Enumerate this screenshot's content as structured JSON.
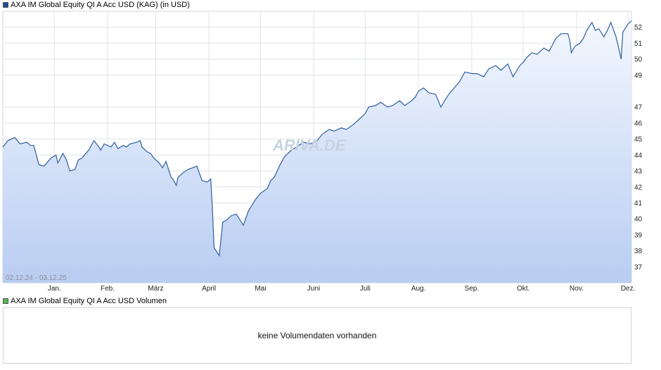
{
  "legend": {
    "price_label": "AXA IM Global Equity QI A Acc USD (KAG) (in USD)",
    "volume_label": "AXA IM Global Equity QI A Acc USD Volumen"
  },
  "colors": {
    "line": "#2e5f9e",
    "fill_top": "#f3f7fe",
    "fill_bottom": "#b9cdf2",
    "grid": "#dfe3ea",
    "price_swatch": "#1f4e9a",
    "volume_swatch": "#55b655"
  },
  "range_label": "02.12.24 - 03.12.25",
  "watermark": "ARIVA.DE",
  "volume_panel": {
    "message": "keine Volumendaten vorhanden"
  },
  "chart_data": {
    "type": "area",
    "title": "AXA IM Global Equity QI A Acc USD (KAG) (in USD)",
    "xlabel": "",
    "ylabel": "",
    "x_range": [
      "2024-12-02",
      "2025-12-03"
    ],
    "ylim": [
      36.0,
      53.0
    ],
    "y_ticks": [
      37,
      38,
      39,
      40,
      41,
      42,
      43,
      44,
      45,
      46,
      47,
      49,
      50,
      51,
      52
    ],
    "month_labels": [
      {
        "label": "Jan.",
        "date": "2025-01-01"
      },
      {
        "label": "Feb.",
        "date": "2025-02-01"
      },
      {
        "label": "März",
        "date": "2025-03-01"
      },
      {
        "label": "April",
        "date": "2025-04-01"
      },
      {
        "label": "Mai",
        "date": "2025-05-01"
      },
      {
        "label": "Juni",
        "date": "2025-06-01"
      },
      {
        "label": "Juli",
        "date": "2025-07-01"
      },
      {
        "label": "Aug.",
        "date": "2025-08-01"
      },
      {
        "label": "Sep.",
        "date": "2025-09-01"
      },
      {
        "label": "Okt.",
        "date": "2025-10-01"
      },
      {
        "label": "Nov.",
        "date": "2025-11-01"
      },
      {
        "label": "Dez.",
        "date": "2025-12-01"
      }
    ],
    "grid": true,
    "legend": "top-left",
    "series": [
      {
        "values": [
          [
            "2024-12-02",
            44.5
          ],
          [
            "2024-12-05",
            44.9
          ],
          [
            "2024-12-09",
            45.1
          ],
          [
            "2024-12-12",
            44.7
          ],
          [
            "2024-12-16",
            44.8
          ],
          [
            "2024-12-18",
            44.6
          ],
          [
            "2024-12-20",
            44.6
          ],
          [
            "2024-12-23",
            43.4
          ],
          [
            "2024-12-26",
            43.3
          ],
          [
            "2024-12-30",
            43.8
          ],
          [
            "2025-01-02",
            44.0
          ],
          [
            "2025-01-03",
            43.5
          ],
          [
            "2025-01-06",
            44.1
          ],
          [
            "2025-01-08",
            43.7
          ],
          [
            "2025-01-10",
            43.0
          ],
          [
            "2025-01-13",
            43.1
          ],
          [
            "2025-01-15",
            43.7
          ],
          [
            "2025-01-17",
            43.8
          ],
          [
            "2025-01-21",
            44.3
          ],
          [
            "2025-01-24",
            44.9
          ],
          [
            "2025-01-27",
            44.5
          ],
          [
            "2025-01-28",
            44.3
          ],
          [
            "2025-01-30",
            44.7
          ],
          [
            "2025-02-03",
            44.5
          ],
          [
            "2025-02-05",
            44.8
          ],
          [
            "2025-02-07",
            44.4
          ],
          [
            "2025-02-10",
            44.6
          ],
          [
            "2025-02-12",
            44.5
          ],
          [
            "2025-02-14",
            44.7
          ],
          [
            "2025-02-18",
            44.8
          ],
          [
            "2025-02-20",
            44.9
          ],
          [
            "2025-02-21",
            44.5
          ],
          [
            "2025-02-24",
            44.2
          ],
          [
            "2025-02-26",
            44.1
          ],
          [
            "2025-02-28",
            43.8
          ],
          [
            "2025-03-03",
            43.5
          ],
          [
            "2025-03-05",
            43.2
          ],
          [
            "2025-03-07",
            43.6
          ],
          [
            "2025-03-10",
            42.6
          ],
          [
            "2025-03-11",
            42.5
          ],
          [
            "2025-03-13",
            42.1
          ],
          [
            "2025-03-14",
            42.6
          ],
          [
            "2025-03-17",
            42.9
          ],
          [
            "2025-03-20",
            43.1
          ],
          [
            "2025-03-25",
            43.3
          ],
          [
            "2025-03-28",
            42.4
          ],
          [
            "2025-03-31",
            42.3
          ],
          [
            "2025-04-02",
            42.5
          ],
          [
            "2025-04-03",
            40.7
          ],
          [
            "2025-04-04",
            38.2
          ],
          [
            "2025-04-07",
            37.7
          ],
          [
            "2025-04-09",
            39.8
          ],
          [
            "2025-04-11",
            39.9
          ],
          [
            "2025-04-14",
            40.2
          ],
          [
            "2025-04-17",
            40.3
          ],
          [
            "2025-04-21",
            39.6
          ],
          [
            "2025-04-24",
            40.5
          ],
          [
            "2025-04-28",
            41.2
          ],
          [
            "2025-05-01",
            41.6
          ],
          [
            "2025-05-05",
            41.9
          ],
          [
            "2025-05-07",
            42.4
          ],
          [
            "2025-05-09",
            42.6
          ],
          [
            "2025-05-12",
            43.3
          ],
          [
            "2025-05-15",
            43.9
          ],
          [
            "2025-05-19",
            44.3
          ],
          [
            "2025-05-22",
            44.5
          ],
          [
            "2025-05-26",
            44.8
          ],
          [
            "2025-05-30",
            44.7
          ],
          [
            "2025-06-03",
            44.9
          ],
          [
            "2025-06-06",
            45.3
          ],
          [
            "2025-06-10",
            45.6
          ],
          [
            "2025-06-13",
            45.5
          ],
          [
            "2025-06-17",
            45.7
          ],
          [
            "2025-06-20",
            45.6
          ],
          [
            "2025-06-24",
            45.9
          ],
          [
            "2025-06-27",
            46.2
          ],
          [
            "2025-07-01",
            46.6
          ],
          [
            "2025-07-03",
            47.0
          ],
          [
            "2025-07-07",
            47.1
          ],
          [
            "2025-07-10",
            47.3
          ],
          [
            "2025-07-14",
            47.0
          ],
          [
            "2025-07-17",
            47.1
          ],
          [
            "2025-07-21",
            47.4
          ],
          [
            "2025-07-24",
            47.1
          ],
          [
            "2025-07-28",
            47.4
          ],
          [
            "2025-07-30",
            47.6
          ],
          [
            "2025-08-01",
            48.0
          ],
          [
            "2025-08-04",
            48.2
          ],
          [
            "2025-08-07",
            47.9
          ],
          [
            "2025-08-11",
            47.8
          ],
          [
            "2025-08-14",
            47.0
          ],
          [
            "2025-08-18",
            47.7
          ],
          [
            "2025-08-21",
            48.1
          ],
          [
            "2025-08-25",
            48.6
          ],
          [
            "2025-08-28",
            49.2
          ],
          [
            "2025-09-01",
            49.1
          ],
          [
            "2025-09-04",
            49.1
          ],
          [
            "2025-09-08",
            48.9
          ],
          [
            "2025-09-11",
            49.4
          ],
          [
            "2025-09-15",
            49.6
          ],
          [
            "2025-09-18",
            49.3
          ],
          [
            "2025-09-22",
            49.7
          ],
          [
            "2025-09-25",
            48.9
          ],
          [
            "2025-09-29",
            49.6
          ],
          [
            "2025-10-01",
            49.8
          ],
          [
            "2025-10-03",
            50.1
          ],
          [
            "2025-10-06",
            50.4
          ],
          [
            "2025-10-09",
            50.3
          ],
          [
            "2025-10-13",
            50.7
          ],
          [
            "2025-10-16",
            50.5
          ],
          [
            "2025-10-20",
            51.3
          ],
          [
            "2025-10-23",
            51.6
          ],
          [
            "2025-10-27",
            51.6
          ],
          [
            "2025-10-28",
            51.2
          ],
          [
            "2025-10-29",
            50.4
          ],
          [
            "2025-10-31",
            50.8
          ],
          [
            "2025-11-03",
            51.0
          ],
          [
            "2025-11-05",
            51.3
          ],
          [
            "2025-11-07",
            51.8
          ],
          [
            "2025-11-10",
            52.3
          ],
          [
            "2025-11-12",
            51.8
          ],
          [
            "2025-11-14",
            51.9
          ],
          [
            "2025-11-17",
            51.4
          ],
          [
            "2025-11-19",
            51.8
          ],
          [
            "2025-11-21",
            52.3
          ],
          [
            "2025-11-24",
            51.4
          ],
          [
            "2025-11-26",
            50.5
          ],
          [
            "2025-11-27",
            50.0
          ],
          [
            "2025-11-28",
            51.7
          ],
          [
            "2025-12-01",
            52.2
          ],
          [
            "2025-12-03",
            52.4
          ]
        ]
      }
    ]
  }
}
